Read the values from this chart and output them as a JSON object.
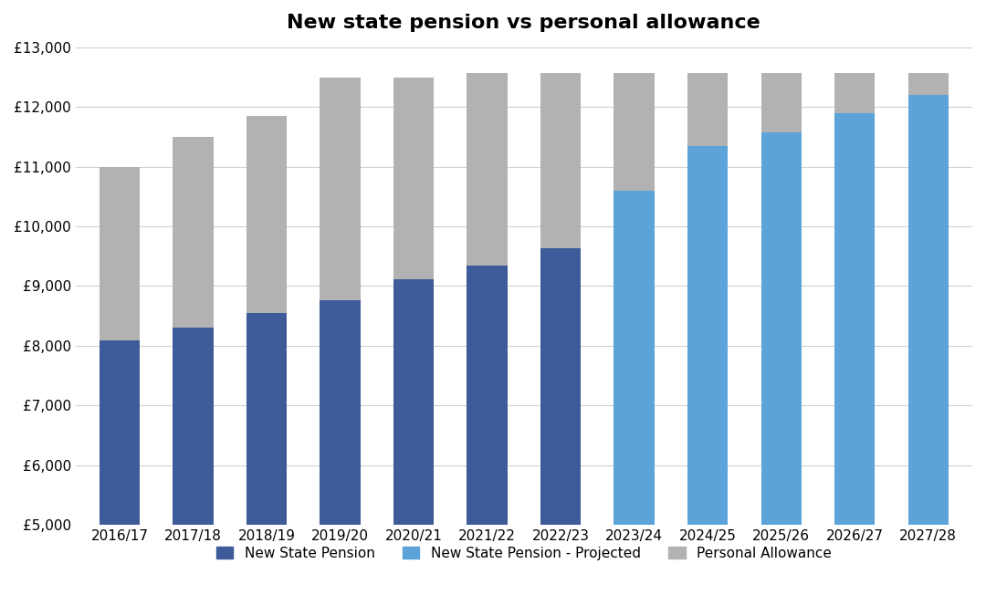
{
  "title": "New state pension vs personal allowance",
  "categories": [
    "2016/17",
    "2017/18",
    "2018/19",
    "2019/20",
    "2020/21",
    "2021/22",
    "2022/23",
    "2023/24",
    "2024/25",
    "2025/26",
    "2026/27",
    "2027/28"
  ],
  "new_state_pension_actual": [
    8093,
    8297,
    8546,
    8767,
    9110,
    9340,
    9628,
    0,
    0,
    0,
    0,
    0
  ],
  "new_state_pension_projected": [
    0,
    0,
    0,
    0,
    0,
    0,
    0,
    10600,
    11350,
    11580,
    11900,
    12200
  ],
  "personal_allowance_total": [
    11000,
    11500,
    11850,
    12500,
    12500,
    12570,
    12570,
    12570,
    12570,
    12570,
    12570,
    12570
  ],
  "color_actual": "#3d5a99",
  "color_projected": "#5ba3d9",
  "color_allowance": "#b2b2b2",
  "ylim_min": 5000,
  "ylim_max": 13000,
  "yticks": [
    5000,
    6000,
    7000,
    8000,
    9000,
    10000,
    11000,
    12000,
    13000
  ],
  "legend_labels": [
    "New State Pension",
    "New State Pension - Projected",
    "Personal Allowance"
  ],
  "background_color": "#ffffff",
  "grid_color": "#d0d0d0",
  "bar_width": 0.55,
  "title_fontsize": 16,
  "tick_fontsize": 11,
  "legend_fontsize": 11
}
